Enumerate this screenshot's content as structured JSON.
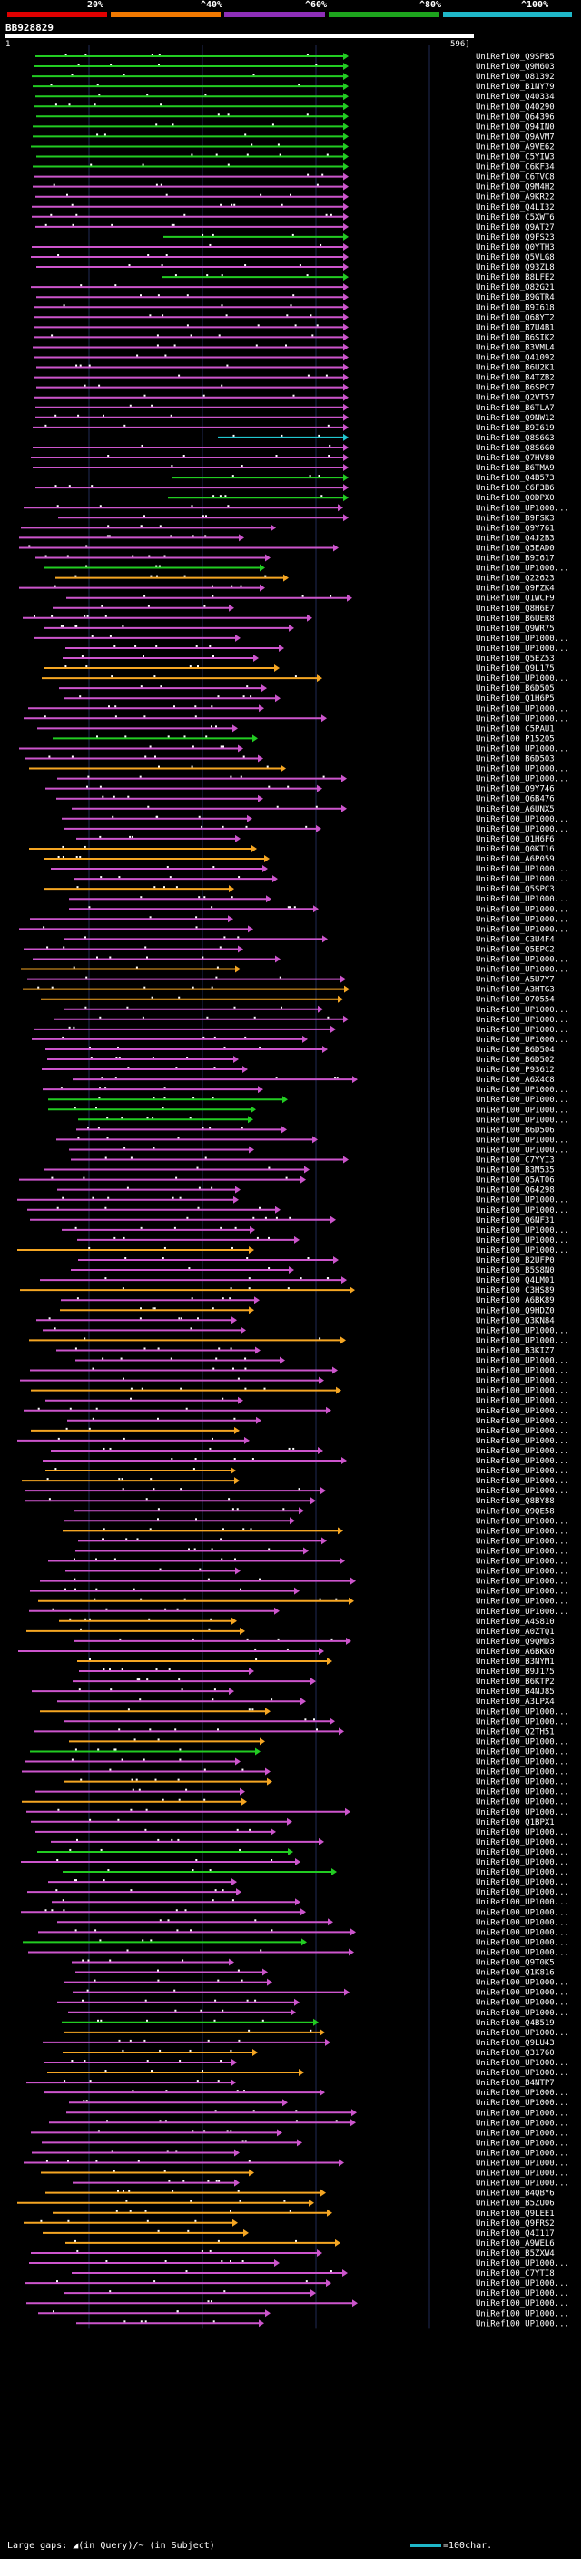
{
  "scale": {
    "labels": [
      "20%",
      "^40%",
      "^60%",
      "^80%",
      "^100%"
    ],
    "colors": [
      "#e00000",
      "#f07800",
      "#8e2fb8",
      "#1da41d",
      "#1fb7c8"
    ]
  },
  "query": {
    "name": "BB928829",
    "start": "1",
    "end": "596]"
  },
  "colors": {
    "green": "#22cc22",
    "orange": "#f5a623",
    "magenta": "#cc55cc",
    "cyan": "#21c7d0",
    "grid": "#1f2a55"
  },
  "hits": [
    "UniRef100_Q9SPB5",
    "UniRef100_Q9M603",
    "UniRef100_O81392",
    "UniRef100_B1NY79",
    "UniRef100_Q40334",
    "UniRef100_Q40290",
    "UniRef100_Q64396",
    "UniRef100_Q94IN0",
    "UniRef100_Q9AVM7",
    "UniRef100_A9VE62",
    "UniRef100_C5YIW3",
    "UniRef100_C6KF34",
    "UniRef100_C6TVC8",
    "UniRef100_Q9M4H2",
    "UniRef100_A9KR22",
    "UniRef100_Q4LI32",
    "UniRef100_C5XWT6",
    "UniRef100_Q9AT27",
    "UniRef100_Q9FS23",
    "UniRef100_Q0YTH3",
    "UniRef100_Q5VLG8",
    "UniRef100_Q93ZL8",
    "UniRef100_B8LFE2",
    "UniRef100_Q82G21",
    "UniRef100_B9GTR4",
    "UniRef100_B9I618",
    "UniRef100_Q68YT2",
    "UniRef100_B7U4B1",
    "UniRef100_B6SIK2",
    "UniRef100_B3VML4",
    "UniRef100_Q41092",
    "UniRef100_B6U2K1",
    "UniRef100_B4TZB2",
    "UniRef100_B6SPC7",
    "UniRef100_Q2VT57",
    "UniRef100_B6TLA7",
    "UniRef100_Q9NW12",
    "UniRef100_B9I619",
    "UniRef100_Q8S6G3",
    "UniRef100_Q8S6G0",
    "UniRef100_Q7HV80",
    "UniRef100_B6TMA9",
    "UniRef100_Q4B573",
    "UniRef100_C6F3B6",
    "UniRef100_Q0DPX0",
    "UniRef100_UP1000...",
    "UniRef100_B9FSK3",
    "UniRef100_Q9Y761",
    "UniRef100_Q4J2B3",
    "UniRef100_Q5EAD0",
    "UniRef100_B9I617",
    "UniRef100_UP1000...",
    "UniRef100_Q22623",
    "UniRef100_Q9FZK4",
    "UniRef100_Q1WCF9",
    "UniRef100_Q8H6E7",
    "UniRef100_B6UER8",
    "UniRef100_Q9WR75",
    "UniRef100_UP1000...",
    "UniRef100_UP1000...",
    "UniRef100_Q5EZ53",
    "UniRef100_Q9L175",
    "UniRef100_UP1000...",
    "UniRef100_B6D505",
    "UniRef100_Q1H6P5",
    "UniRef100_UP1000...",
    "UniRef100_UP1000...",
    "UniRef100_C5PAU1",
    "UniRef100_P15205",
    "UniRef100_UP1000...",
    "UniRef100_B6D503",
    "UniRef100_UP1000...",
    "UniRef100_UP1000...",
    "UniRef100_Q9Y746",
    "UniRef100_Q6B476",
    "UniRef100_A6UNX5",
    "UniRef100_UP1000...",
    "UniRef100_UP1000...",
    "UniRef100_Q1H6F6",
    "UniRef100_Q0KT16",
    "UniRef100_A6P059",
    "UniRef100_UP1000...",
    "UniRef100_UP1000...",
    "UniRef100_Q5SPC3",
    "UniRef100_UP1000...",
    "UniRef100_UP1000...",
    "UniRef100_UP1000...",
    "UniRef100_UP1000...",
    "UniRef100_C3U4F4",
    "UniRef100_Q5EPC2",
    "UniRef100_UP1000...",
    "UniRef100_UP1000...",
    "UniRef100_A5U7Y7",
    "UniRef100_A3HTG3",
    "UniRef100_O70554",
    "UniRef100_UP1000...",
    "UniRef100_UP1000...",
    "UniRef100_UP1000...",
    "UniRef100_UP1000...",
    "UniRef100_B6D504",
    "UniRef100_B6D502",
    "UniRef100_P93612",
    "UniRef100_A6X4C8",
    "UniRef100_UP1000...",
    "UniRef100_UP1000...",
    "UniRef100_UP1000...",
    "UniRef100_UP1000...",
    "UniRef100_B6D506",
    "UniRef100_UP1000...",
    "UniRef100_UP1000...",
    "UniRef100_C7YYI3",
    "UniRef100_B3M535",
    "UniRef100_Q5AT06",
    "UniRef100_Q64298",
    "UniRef100_UP1000...",
    "UniRef100_UP1000...",
    "UniRef100_Q6NF31",
    "UniRef100_UP1000...",
    "UniRef100_UP1000...",
    "UniRef100_UP1000...",
    "UniRef100_B2UFP0",
    "UniRef100_B5S8N0",
    "UniRef100_Q4LM01",
    "UniRef100_C3HS89",
    "UniRef100_A6BK89",
    "UniRef100_Q9HDZ0",
    "UniRef100_Q3KN84",
    "UniRef100_UP1000...",
    "UniRef100_UP1000...",
    "UniRef100_B3KIZ7",
    "UniRef100_UP1000...",
    "UniRef100_UP1000...",
    "UniRef100_UP1000...",
    "UniRef100_UP1000...",
    "UniRef100_UP1000...",
    "UniRef100_UP1000...",
    "UniRef100_UP1000...",
    "UniRef100_UP1000...",
    "UniRef100_UP1000...",
    "UniRef100_UP1000...",
    "UniRef100_UP1000...",
    "UniRef100_UP1000...",
    "UniRef100_UP1000...",
    "UniRef100_UP1000...",
    "UniRef100_Q8BY88",
    "UniRef100_Q9QE58",
    "UniRef100_UP1000...",
    "UniRef100_UP1000...",
    "UniRef100_UP1000...",
    "UniRef100_UP1000...",
    "UniRef100_UP1000...",
    "UniRef100_UP1000...",
    "UniRef100_UP1000...",
    "UniRef100_UP1000...",
    "UniRef100_UP1000...",
    "UniRef100_UP1000...",
    "UniRef100_A4S810",
    "UniRef100_A0ZTQ1",
    "UniRef100_Q9QMD3",
    "UniRef100_A6BKK0",
    "UniRef100_B3NYM1",
    "UniRef100_B9J175",
    "UniRef100_B6KTP2",
    "UniRef100_B4NJ85",
    "UniRef100_A3LPX4",
    "UniRef100_UP1000...",
    "UniRef100_UP1000...",
    "UniRef100_Q2TH51",
    "UniRef100_UP1000...",
    "UniRef100_UP1000...",
    "UniRef100_UP1000...",
    "UniRef100_UP1000...",
    "UniRef100_UP1000...",
    "UniRef100_UP1000...",
    "UniRef100_UP1000...",
    "UniRef100_UP1000...",
    "UniRef100_Q1BPX1",
    "UniRef100_UP1000...",
    "UniRef100_UP1000...",
    "UniRef100_UP1000...",
    "UniRef100_UP1000...",
    "UniRef100_UP1000...",
    "UniRef100_UP1000...",
    "UniRef100_UP1000...",
    "UniRef100_UP1000...",
    "UniRef100_UP1000...",
    "UniRef100_UP1000...",
    "UniRef100_UP1000...",
    "UniRef100_UP1000...",
    "UniRef100_UP1000...",
    "UniRef100_Q9T0K5",
    "UniRef100_Q1K816",
    "UniRef100_UP1000...",
    "UniRef100_UP1000...",
    "UniRef100_UP1000...",
    "UniRef100_UP1000...",
    "UniRef100_Q4B519",
    "UniRef100_UP1000...",
    "UniRef100_Q9LU43",
    "UniRef100_Q31760",
    "UniRef100_UP1000...",
    "UniRef100_UP1000...",
    "UniRef100_B4NTP7",
    "UniRef100_UP1000...",
    "UniRef100_UP1000...",
    "UniRef100_UP1000...",
    "UniRef100_UP1000...",
    "UniRef100_UP1000...",
    "UniRef100_UP1000...",
    "UniRef100_UP1000...",
    "UniRef100_UP1000...",
    "UniRef100_UP1000...",
    "UniRef100_UP1000...",
    "UniRef100_B4QBY6",
    "UniRef100_B5ZU06",
    "UniRef100_Q9LEE1",
    "UniRef100_Q9FRS2",
    "UniRef100_Q4I117",
    "UniRef100_A9WEL6",
    "UniRef100_B5ZXW4",
    "UniRef100_UP1000...",
    "UniRef100_C7YTI8",
    "UniRef100_UP1000...",
    "UniRef100_UP1000...",
    "UniRef100_UP1000...",
    "UniRef100_UP1000...",
    "UniRef100_UP1000..."
  ],
  "legend": {
    "gaps": "Large gaps: ◢(in Query)/~ (in Subject)",
    "scale": "=100char."
  }
}
